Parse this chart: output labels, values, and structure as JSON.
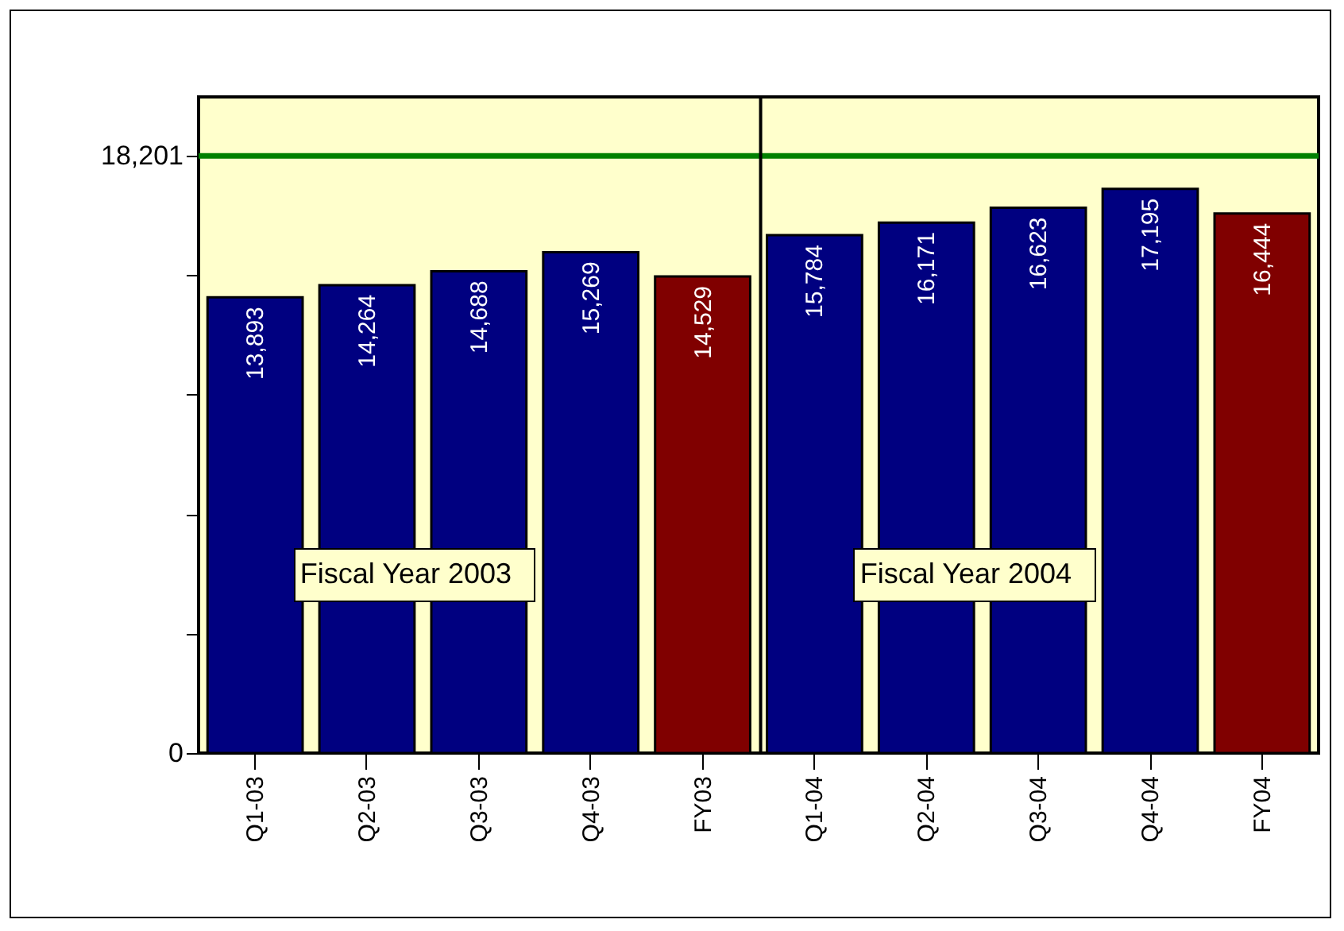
{
  "chart_data": {
    "type": "bar",
    "categories": [
      "Q1-03",
      "Q2-03",
      "Q3-03",
      "Q4-03",
      "FY03",
      "Q1-04",
      "Q2-04",
      "Q3-04",
      "Q4-04",
      "FY04"
    ],
    "values": [
      13893,
      14264,
      14688,
      15269,
      14529,
      15784,
      16171,
      16623,
      17195,
      16444
    ],
    "colors": [
      "#000080",
      "#000080",
      "#000080",
      "#000080",
      "#800000",
      "#000080",
      "#000080",
      "#000080",
      "#000080",
      "#800000"
    ],
    "ylim": [
      0,
      20000
    ],
    "yticks": [
      0,
      {
        "value": 3640.2,
        "label": null
      },
      {
        "value": 7280.4,
        "label": null
      },
      {
        "value": 10920.6,
        "label": null
      },
      {
        "value": 14560.8,
        "label": null
      },
      {
        "value": 18201,
        "label": "18,201"
      }
    ],
    "value_labels": [
      "13,893",
      "14,264",
      "14,688",
      "15,269",
      "14,529",
      "15,784",
      "16,171",
      "16,623",
      "17,195",
      "16,444"
    ],
    "grid": false,
    "ref_lines": [
      {
        "axis": "y",
        "value": 18201,
        "color": "#008000"
      },
      {
        "axis": "x",
        "value": "Q1-04",
        "color": "#000000"
      }
    ],
    "annotations": [
      "Fiscal Year 2003",
      "Fiscal Year 2004"
    ]
  }
}
